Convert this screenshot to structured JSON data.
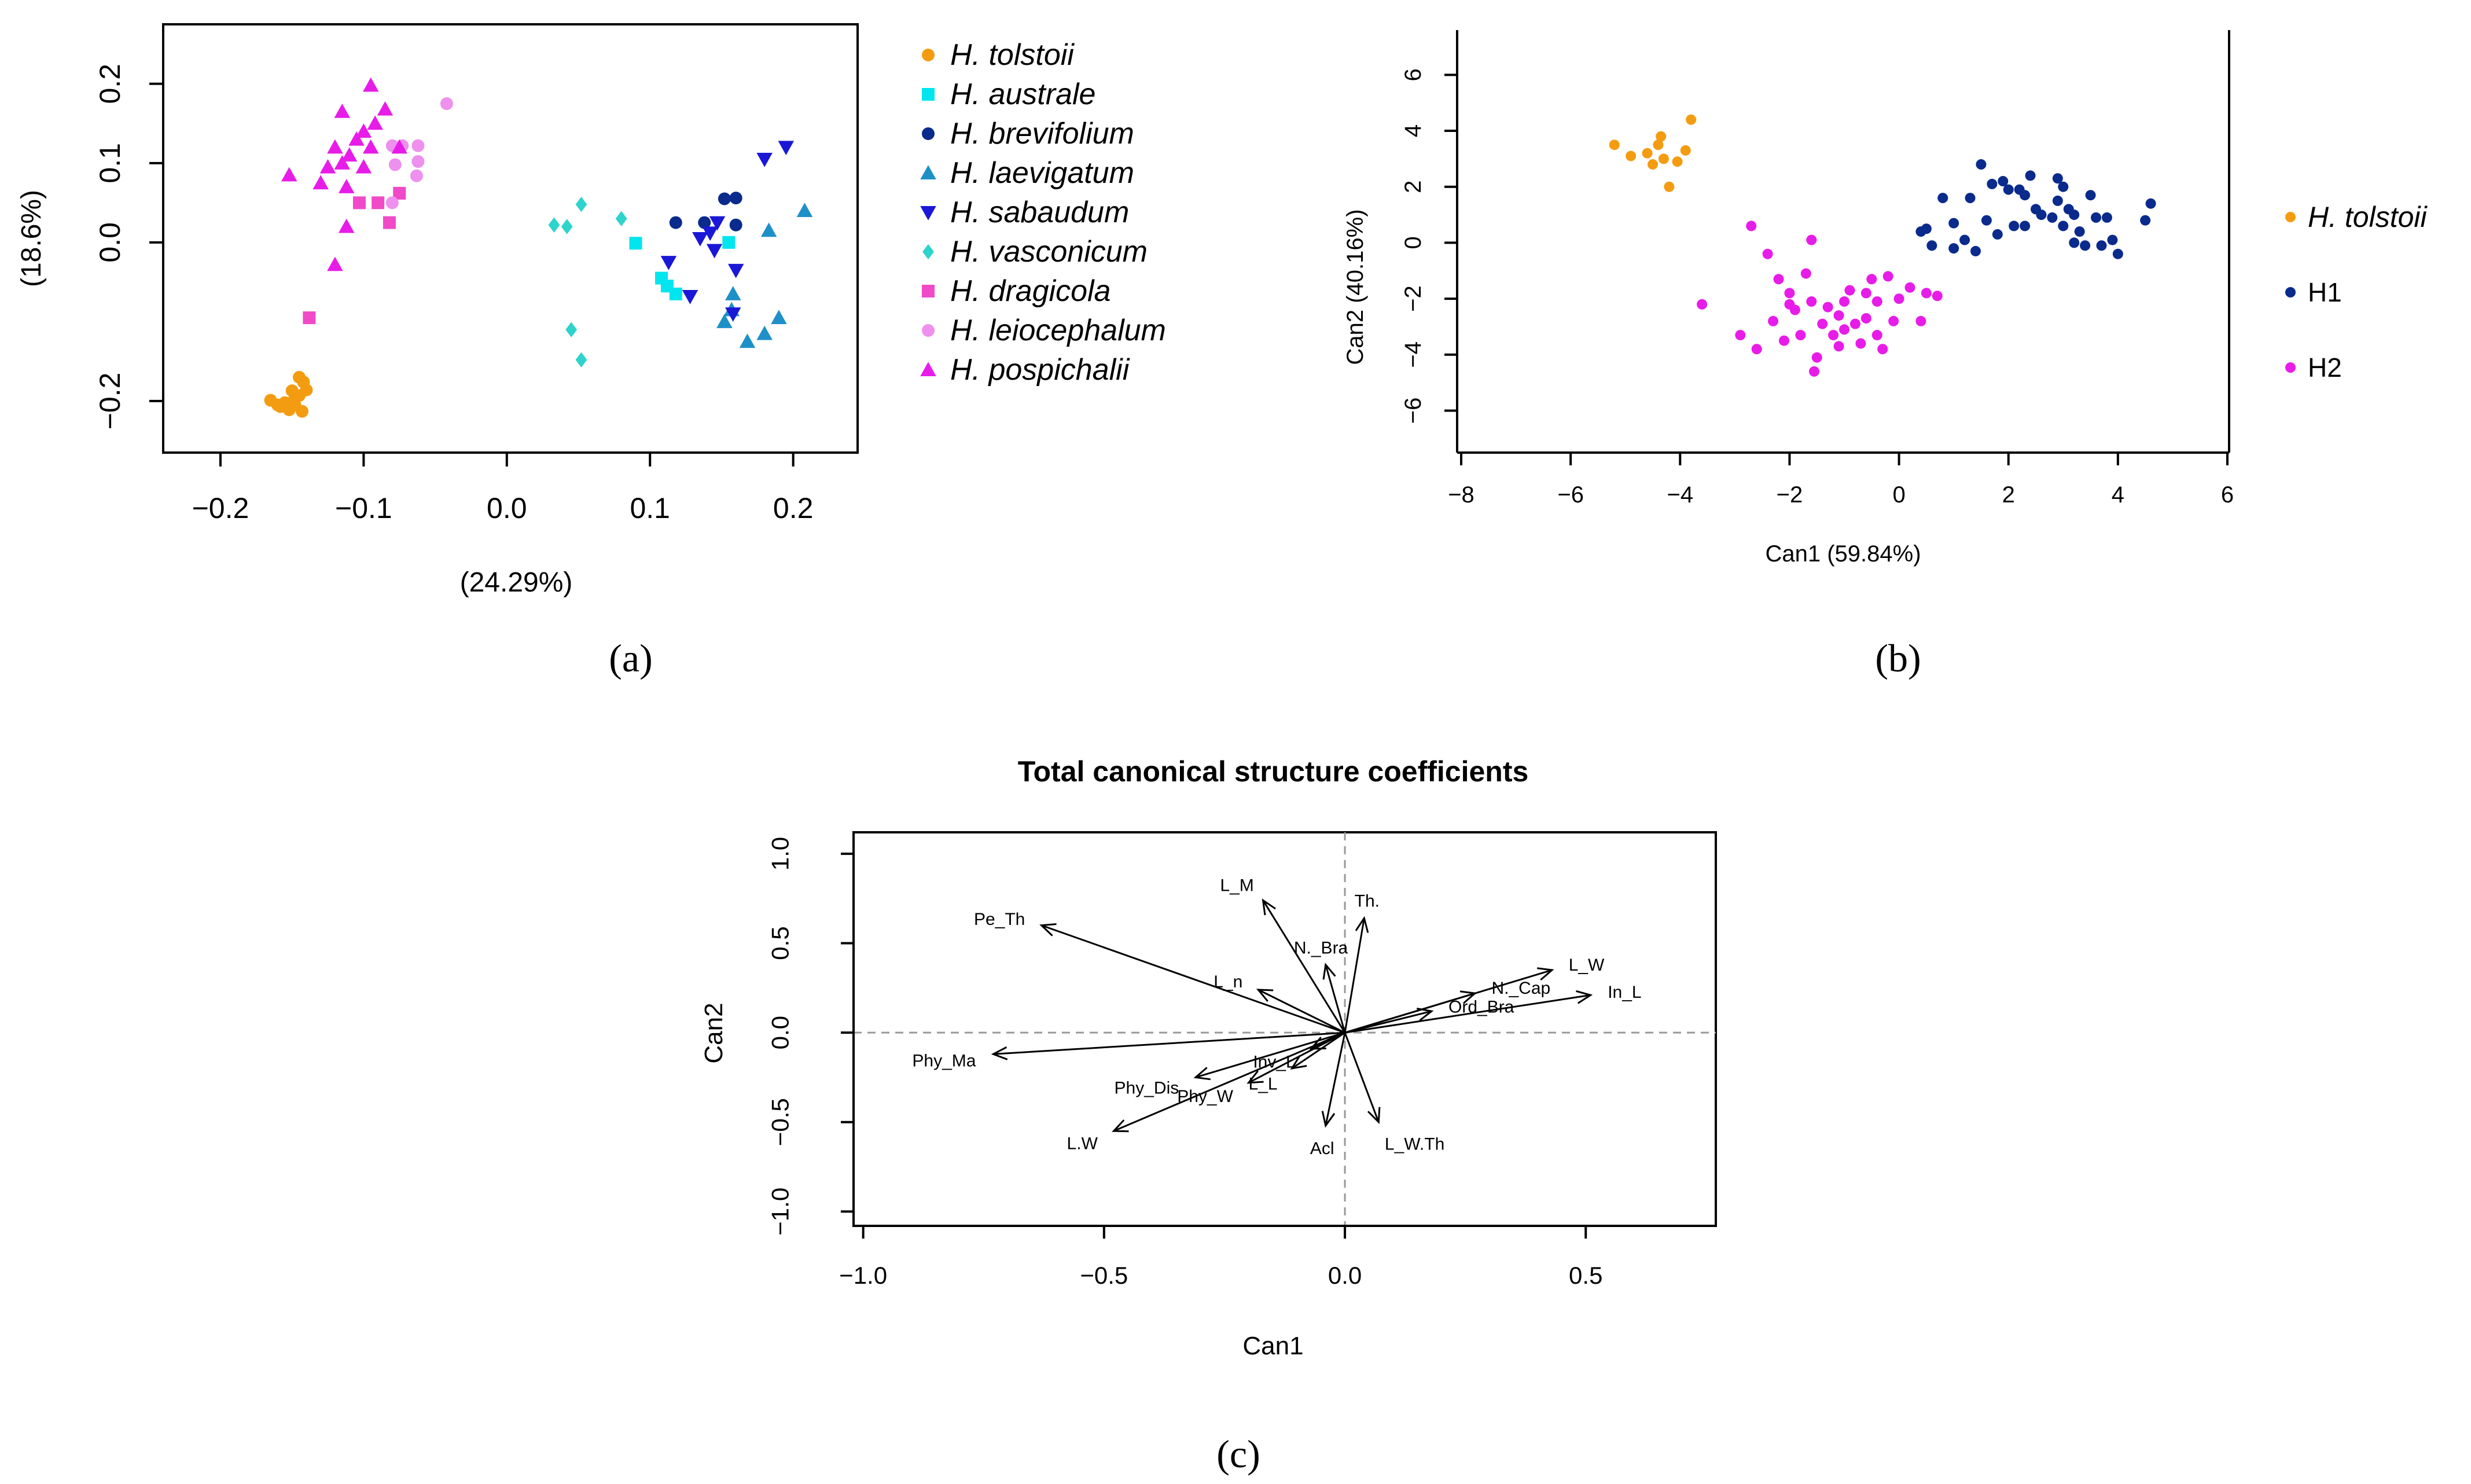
{
  "figure": {
    "panel_labels": {
      "a": "(a)",
      "b": "(b)",
      "c": "(c)"
    }
  },
  "chart_data": [
    {
      "id": "a",
      "type": "scatter",
      "title": "",
      "xlabel": "(24.29%)",
      "ylabel": "(18.6%)",
      "xlim": [
        -0.24,
        0.245
      ],
      "ylim": [
        -0.265,
        0.275
      ],
      "xticks": [
        -0.2,
        -0.1,
        0.0,
        0.1,
        0.2
      ],
      "xtick_labels": [
        "−0.2",
        "−0.1",
        "0.0",
        "0.1",
        "0.2"
      ],
      "yticks": [
        -0.2,
        0.0,
        0.1,
        0.2
      ],
      "ytick_labels": [
        "−0.2",
        "0.0",
        "0.1",
        "0.2"
      ],
      "legend_position": "right",
      "series": [
        {
          "name": "H. tolstoii",
          "color": "#F39C12",
          "marker": "circle",
          "points": [
            [
              -0.165,
              -0.199
            ],
            [
              -0.158,
              -0.207
            ],
            [
              -0.152,
              -0.211
            ],
            [
              -0.148,
              -0.196
            ],
            [
              -0.145,
              -0.17
            ],
            [
              -0.142,
              -0.176
            ],
            [
              -0.14,
              -0.186
            ],
            [
              -0.15,
              -0.187
            ],
            [
              -0.155,
              -0.202
            ],
            [
              -0.143,
              -0.213
            ],
            [
              -0.148,
              -0.205
            ],
            [
              -0.16,
              -0.205
            ],
            [
              -0.145,
              -0.193
            ]
          ]
        },
        {
          "name": "H. australe",
          "color": "#00E5EE",
          "marker": "square",
          "points": [
            [
              0.09,
              -0.001
            ],
            [
              0.108,
              -0.045
            ],
            [
              0.112,
              -0.055
            ],
            [
              0.118,
              -0.065
            ],
            [
              0.155,
              0.0
            ]
          ]
        },
        {
          "name": "H. brevifolium",
          "color": "#0A2A8C",
          "marker": "circle",
          "points": [
            [
              0.118,
              0.025
            ],
            [
              0.138,
              0.025
            ],
            [
              0.152,
              0.055
            ],
            [
              0.16,
              0.056
            ],
            [
              0.16,
              0.022
            ]
          ]
        },
        {
          "name": "H. laevigatum",
          "color": "#1E90C8",
          "marker": "triangle",
          "points": [
            [
              0.152,
              -0.1
            ],
            [
              0.157,
              -0.085
            ],
            [
              0.168,
              -0.125
            ],
            [
              0.18,
              -0.115
            ],
            [
              0.19,
              -0.095
            ],
            [
              0.183,
              0.015
            ],
            [
              0.208,
              0.04
            ],
            [
              0.158,
              -0.065
            ]
          ]
        },
        {
          "name": "H. sabaudum",
          "color": "#1A18D6",
          "marker": "triangle-down",
          "points": [
            [
              0.113,
              -0.025
            ],
            [
              0.128,
              -0.068
            ],
            [
              0.135,
              0.005
            ],
            [
              0.142,
              0.012
            ],
            [
              0.147,
              0.025
            ],
            [
              0.145,
              -0.01
            ],
            [
              0.16,
              -0.035
            ],
            [
              0.158,
              -0.09
            ],
            [
              0.18,
              0.105
            ],
            [
              0.195,
              0.12
            ]
          ]
        },
        {
          "name": "H. vasconicum",
          "color": "#2ED3CC",
          "marker": "diamond",
          "points": [
            [
              0.033,
              0.022
            ],
            [
              0.042,
              0.02
            ],
            [
              0.052,
              0.048
            ],
            [
              0.08,
              0.03
            ],
            [
              0.045,
              -0.11
            ],
            [
              0.052,
              -0.148
            ]
          ]
        },
        {
          "name": "H. dragicola",
          "color": "#F04AC8",
          "marker": "square",
          "points": [
            [
              -0.138,
              -0.095
            ],
            [
              -0.103,
              0.05
            ],
            [
              -0.09,
              0.05
            ],
            [
              -0.082,
              0.025
            ],
            [
              -0.075,
              0.062
            ]
          ]
        },
        {
          "name": "H. leiocephalum",
          "color": "#EE90EE",
          "marker": "circle",
          "points": [
            [
              -0.042,
              0.175
            ],
            [
              -0.062,
              0.102
            ],
            [
              -0.063,
              0.084
            ],
            [
              -0.062,
              0.122
            ],
            [
              -0.073,
              0.122
            ],
            [
              -0.08,
              0.122
            ],
            [
              -0.078,
              0.098
            ],
            [
              -0.08,
              0.05
            ]
          ]
        },
        {
          "name": "H. pospichalii",
          "color": "#E81CE8",
          "marker": "triangle",
          "points": [
            [
              -0.095,
              0.198
            ],
            [
              -0.085,
              0.168
            ],
            [
              -0.092,
              0.15
            ],
            [
              -0.115,
              0.165
            ],
            [
              -0.1,
              0.14
            ],
            [
              -0.12,
              0.12
            ],
            [
              -0.11,
              0.11
            ],
            [
              -0.105,
              0.13
            ],
            [
              -0.095,
              0.12
            ],
            [
              -0.115,
              0.1
            ],
            [
              -0.125,
              0.095
            ],
            [
              -0.13,
              0.075
            ],
            [
              -0.152,
              0.085
            ],
            [
              -0.112,
              0.02
            ],
            [
              -0.12,
              -0.028
            ],
            [
              -0.1,
              0.095
            ],
            [
              -0.075,
              0.12
            ],
            [
              -0.112,
              0.07
            ]
          ]
        }
      ]
    },
    {
      "id": "b",
      "type": "scatter",
      "title": "",
      "xlabel": "Can1 (59.84%)",
      "ylabel": "Can2 (40.16%)",
      "xlim": [
        -8,
        6
      ],
      "ylim": [
        -7.5,
        7.6
      ],
      "xticks": [
        -8,
        -6,
        -4,
        -2,
        0,
        2,
        4,
        6
      ],
      "xtick_labels": [
        "−8",
        "−6",
        "−4",
        "−2",
        "0",
        "2",
        "4",
        "6"
      ],
      "yticks": [
        -6,
        -4,
        -2,
        0,
        2,
        4,
        6
      ],
      "ytick_labels": [
        "−6",
        "−4",
        "−2",
        "0",
        "2",
        "4",
        "6"
      ],
      "legend_position": "right",
      "series": [
        {
          "name": "H. tolstoii",
          "color": "#F39C12",
          "marker": "circle",
          "points": [
            [
              -5.2,
              3.5
            ],
            [
              -4.9,
              3.1
            ],
            [
              -4.6,
              3.2
            ],
            [
              -4.5,
              2.8
            ],
            [
              -4.4,
              3.5
            ],
            [
              -4.35,
              3.8
            ],
            [
              -4.3,
              3.0
            ],
            [
              -4.2,
              2.0
            ],
            [
              -4.05,
              2.9
            ],
            [
              -3.9,
              3.3
            ],
            [
              -3.8,
              4.4
            ]
          ]
        },
        {
          "name": "H1",
          "color": "#0A2A8C",
          "marker": "circle",
          "points": [
            [
              0.4,
              0.4
            ],
            [
              0.5,
              0.5
            ],
            [
              0.6,
              -0.1
            ],
            [
              0.8,
              1.6
            ],
            [
              1.0,
              0.7
            ],
            [
              1.0,
              -0.2
            ],
            [
              1.2,
              0.1
            ],
            [
              1.3,
              1.6
            ],
            [
              1.4,
              -0.3
            ],
            [
              1.5,
              2.8
            ],
            [
              1.6,
              0.8
            ],
            [
              1.7,
              2.1
            ],
            [
              1.8,
              0.3
            ],
            [
              1.9,
              2.2
            ],
            [
              2.0,
              1.9
            ],
            [
              2.1,
              0.6
            ],
            [
              2.2,
              1.9
            ],
            [
              2.3,
              1.7
            ],
            [
              2.3,
              0.6
            ],
            [
              2.4,
              2.4
            ],
            [
              2.5,
              1.2
            ],
            [
              2.6,
              1.0
            ],
            [
              2.8,
              0.9
            ],
            [
              2.9,
              2.3
            ],
            [
              3.0,
              2.0
            ],
            [
              2.9,
              1.5
            ],
            [
              3.0,
              0.6
            ],
            [
              3.1,
              1.2
            ],
            [
              3.2,
              0.0
            ],
            [
              3.3,
              0.4
            ],
            [
              3.4,
              -0.1
            ],
            [
              3.5,
              1.7
            ],
            [
              3.6,
              0.9
            ],
            [
              3.7,
              -0.1
            ],
            [
              3.8,
              0.9
            ],
            [
              4.0,
              -0.4
            ],
            [
              4.5,
              0.8
            ],
            [
              4.6,
              1.4
            ],
            [
              3.9,
              0.1
            ],
            [
              3.2,
              1.0
            ]
          ]
        },
        {
          "name": "H2",
          "color": "#E81CE8",
          "marker": "circle",
          "points": [
            [
              -3.6,
              -2.2
            ],
            [
              -2.9,
              -3.3
            ],
            [
              -2.7,
              0.6
            ],
            [
              -2.6,
              -3.8
            ],
            [
              -2.4,
              -0.4
            ],
            [
              -2.3,
              -2.8
            ],
            [
              -2.2,
              -1.3
            ],
            [
              -2.1,
              -3.5
            ],
            [
              -2.0,
              -1.8
            ],
            [
              -1.9,
              -2.4
            ],
            [
              -1.8,
              -3.3
            ],
            [
              -1.7,
              -1.1
            ],
            [
              -1.6,
              -2.1
            ],
            [
              -1.6,
              0.1
            ],
            [
              -1.55,
              -4.6
            ],
            [
              -1.5,
              -4.1
            ],
            [
              -1.4,
              -2.9
            ],
            [
              -1.3,
              -2.3
            ],
            [
              -1.2,
              -3.3
            ],
            [
              -1.1,
              -2.6
            ],
            [
              -1.0,
              -3.1
            ],
            [
              -1.0,
              -2.1
            ],
            [
              -0.9,
              -1.7
            ],
            [
              -0.8,
              -2.9
            ],
            [
              -0.7,
              -3.6
            ],
            [
              -0.6,
              -2.7
            ],
            [
              -0.6,
              -1.8
            ],
            [
              -0.5,
              -1.3
            ],
            [
              -0.4,
              -3.3
            ],
            [
              -0.4,
              -2.1
            ],
            [
              -0.3,
              -3.8
            ],
            [
              -0.2,
              -1.2
            ],
            [
              -0.1,
              -2.8
            ],
            [
              0.0,
              -2.0
            ],
            [
              0.2,
              -1.6
            ],
            [
              0.4,
              -2.8
            ],
            [
              0.5,
              -1.8
            ],
            [
              0.7,
              -1.9
            ],
            [
              -1.1,
              -3.7
            ],
            [
              -2.0,
              -2.2
            ]
          ]
        }
      ]
    },
    {
      "id": "c",
      "type": "biplot",
      "title": "Total canonical structure coefficients",
      "xlabel": "Can1",
      "ylabel": "Can2",
      "xlim": [
        -1.02,
        0.77
      ],
      "ylim": [
        -1.08,
        1.12
      ],
      "xticks": [
        -1.0,
        -0.5,
        0.0,
        0.5
      ],
      "xtick_labels": [
        "−1.0",
        "−0.5",
        "0.0",
        "0.5"
      ],
      "yticks": [
        -1.0,
        -0.5,
        0.0,
        0.5,
        1.0
      ],
      "ytick_labels": [
        "−1.0",
        "−0.5",
        "0.0",
        "0.5",
        "1.0"
      ],
      "reference_lines": {
        "x": 0,
        "y": 0,
        "style": "dashed"
      },
      "vectors": [
        {
          "name": "Pe_Th",
          "x": -0.63,
          "y": 0.6,
          "label": "Pe_Th"
        },
        {
          "name": "L_M",
          "x": -0.17,
          "y": 0.74,
          "label": "L_M"
        },
        {
          "name": "Th.",
          "x": 0.04,
          "y": 0.64,
          "label": "Th."
        },
        {
          "name": "N._Bra",
          "x": -0.04,
          "y": 0.38,
          "label": "N._Bra"
        },
        {
          "name": "L_n",
          "x": -0.18,
          "y": 0.24,
          "label": "L_n"
        },
        {
          "name": "N._Cap",
          "x": 0.27,
          "y": 0.22,
          "label": "N._Cap"
        },
        {
          "name": "Ord_Bra",
          "x": 0.18,
          "y": 0.12,
          "label": "Ord_Bra"
        },
        {
          "name": "L_W",
          "x": 0.43,
          "y": 0.35,
          "label": "L_W"
        },
        {
          "name": "In_L",
          "x": 0.51,
          "y": 0.21,
          "label": "In_L"
        },
        {
          "name": "Phy_Ma",
          "x": -0.73,
          "y": -0.12,
          "label": "Phy_Ma"
        },
        {
          "name": "Phy_Dis",
          "x": -0.31,
          "y": -0.25,
          "label": "Phy_Dis"
        },
        {
          "name": "L.W",
          "x": -0.48,
          "y": -0.55,
          "label": "L.W"
        },
        {
          "name": "Phy_W",
          "x": -0.2,
          "y": -0.28,
          "label": "Phy_W"
        },
        {
          "name": "L_L",
          "x": -0.11,
          "y": -0.2,
          "label": "L_L"
        },
        {
          "name": "Inv_L",
          "x": -0.07,
          "y": -0.09,
          "label": "Inv_L"
        },
        {
          "name": "Acl",
          "x": -0.04,
          "y": -0.52,
          "label": "Acl"
        },
        {
          "name": "L_W.Th",
          "x": 0.07,
          "y": -0.5,
          "label": "L_W.Th"
        }
      ]
    }
  ]
}
